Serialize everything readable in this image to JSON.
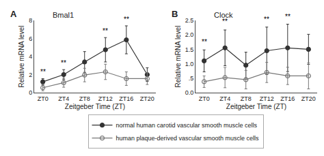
{
  "chart_data": [
    {
      "type": "line",
      "title": "Bmal1",
      "xlabel": "Zeitgeber Time (ZT)",
      "ylabel": "Relative mRNA level",
      "categories": [
        "ZT0",
        "ZT4",
        "ZT8",
        "ZT12",
        "ZT16",
        "ZT20"
      ],
      "series": [
        {
          "name": "normal human carotid vascular smooth muscle cells",
          "color": "#333333",
          "marker": "circle",
          "values": [
            1.2,
            2.0,
            3.4,
            4.75,
            5.85,
            2.0
          ],
          "error": [
            0.35,
            0.55,
            1.15,
            1.35,
            1.55,
            0.75
          ]
        },
        {
          "name": "human plaque-derived vascular smooth muscle cells",
          "color": "#777777",
          "marker": "circle-open",
          "values": [
            0.55,
            1.1,
            1.95,
            2.3,
            1.55,
            1.55
          ],
          "error": [
            0.35,
            0.5,
            0.75,
            0.85,
            0.75,
            0.65
          ]
        }
      ],
      "annotations": [
        {
          "text": "A"
        },
        {
          "x": "ZT0",
          "y": 1.75,
          "text": "**"
        },
        {
          "x": "ZT4",
          "y": 2.75,
          "text": "**"
        },
        {
          "x": "ZT12",
          "y": 6.3,
          "text": "**"
        },
        {
          "x": "ZT16",
          "y": 7.55,
          "text": "**"
        }
      ],
      "ylim": [
        0,
        8
      ],
      "yticks": [
        0,
        2,
        4,
        6,
        8
      ],
      "grid": false,
      "legend": "bottom"
    },
    {
      "type": "line",
      "title": "Clock",
      "xlabel": "Zeitgeber Time (ZT)",
      "ylabel": "Relative mRNA level",
      "categories": [
        "ZT0",
        "ZT4",
        "ZT8",
        "ZT12",
        "ZT16",
        "ZT20"
      ],
      "series": [
        {
          "name": "normal human carotid vascular smooth muscle cells",
          "color": "#333333",
          "marker": "circle",
          "values": [
            1.1,
            1.55,
            0.95,
            1.45,
            1.55,
            1.5
          ],
          "error": [
            0.38,
            0.62,
            0.45,
            0.82,
            0.82,
            0.52
          ]
        },
        {
          "name": "human plaque-derived vascular smooth muscle cells",
          "color": "#777777",
          "marker": "circle-open",
          "values": [
            0.38,
            0.52,
            0.45,
            0.7,
            0.58,
            0.58
          ],
          "error": [
            0.2,
            0.35,
            0.32,
            0.35,
            0.3,
            0.45
          ]
        }
      ],
      "annotations": [
        {
          "text": "B"
        },
        {
          "x": "ZT0",
          "y": 1.57,
          "text": "**"
        },
        {
          "x": "ZT4",
          "y": 2.28,
          "text": "**"
        },
        {
          "x": "ZT12",
          "y": 2.35,
          "text": "**"
        },
        {
          "x": "ZT16",
          "y": 2.45,
          "text": "**"
        }
      ],
      "ylim": [
        0.0,
        2.5
      ],
      "yticks": [
        {
          "value": 0.0,
          "label": "0.0"
        },
        {
          "value": 0.5,
          "label": ".5"
        },
        {
          "value": 1.0,
          "label": "1.0"
        },
        1.5,
        {
          "value": 2.0,
          "label": "2.0"
        },
        2.5
      ],
      "grid": false,
      "legend": "bottom"
    }
  ]
}
